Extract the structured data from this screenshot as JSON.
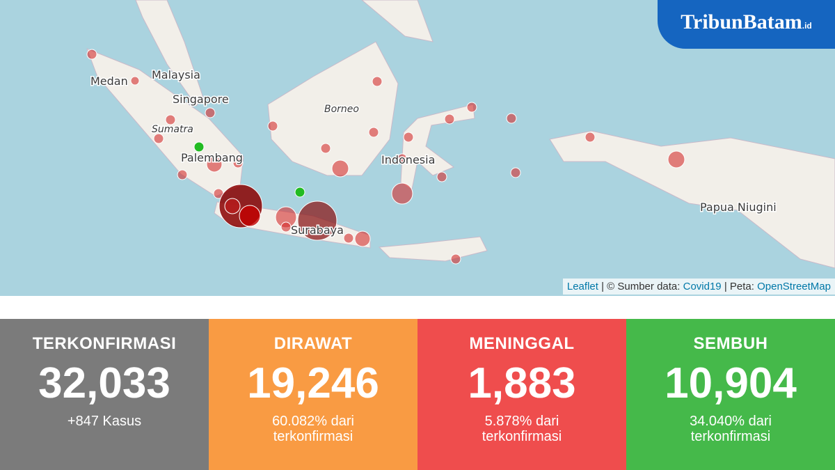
{
  "logo": {
    "text": "TribunBatam",
    "suffix": ".id"
  },
  "map": {
    "labels": [
      {
        "text": "Malaysia"
      },
      {
        "text": "Medan"
      },
      {
        "text": "Singapore"
      },
      {
        "text": "Sumatra"
      },
      {
        "text": "Palembang"
      },
      {
        "text": "Borneo"
      },
      {
        "text": "Indonesia"
      },
      {
        "text": "Surabaya"
      },
      {
        "text": "Papua Niugini"
      }
    ],
    "attribution": {
      "leaflet": "Leaflet",
      "source_prefix": "| © Sumber data:",
      "source": "Covid19",
      "map_prefix": "| Peta:",
      "map": "OpenStreetMap"
    }
  },
  "stats": [
    {
      "title": "TERKONFIRMASI",
      "value": "32,033",
      "note": "+847 Kasus"
    },
    {
      "title": "DIRAWAT",
      "value": "19,246",
      "note": "60.082% dari terkonfirmasi"
    },
    {
      "title": "MENINGGAL",
      "value": "1,883",
      "note": "5.878% dari terkonfirmasi"
    },
    {
      "title": "SEMBUH",
      "value": "10,904",
      "note": "34.040% dari terkonfirmasi"
    }
  ]
}
